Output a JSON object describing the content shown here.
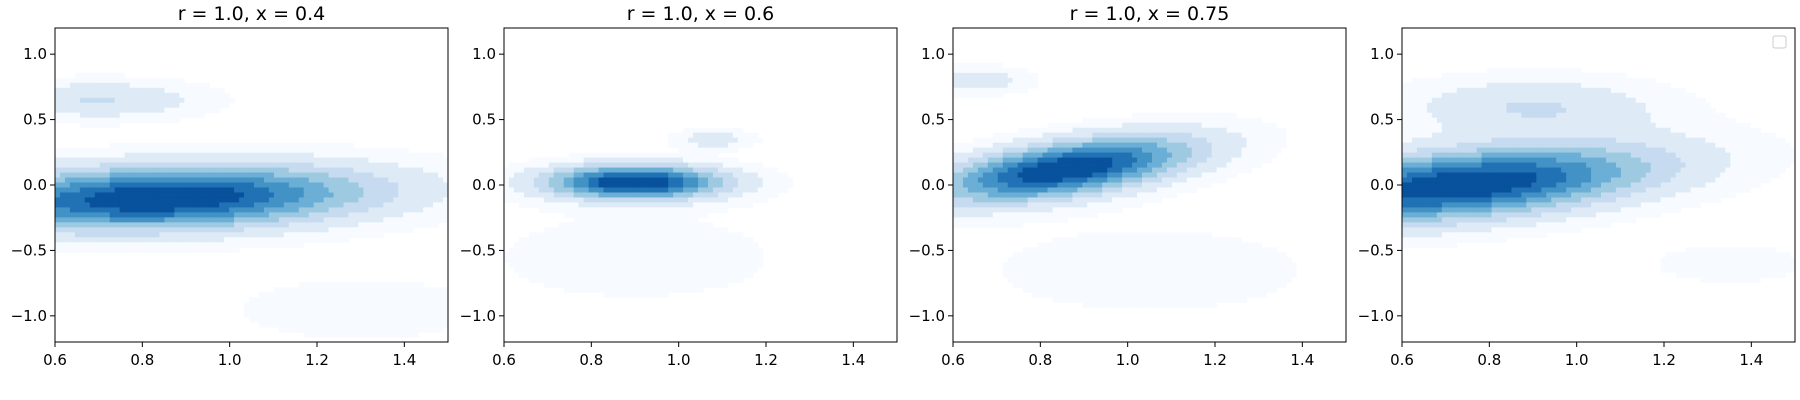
{
  "colors": {
    "levels": [
      "#f7fbff",
      "#deebf7",
      "#c6dbef",
      "#9ecae1",
      "#6baed6",
      "#4292c6",
      "#2171b5",
      "#08519c"
    ]
  },
  "chart_data": [
    {
      "type": "contour",
      "title": "r = 1.0, x = 0.4",
      "xlim": [
        0.6,
        1.5
      ],
      "ylim": [
        -1.2,
        1.2
      ],
      "xticks": [
        "0.6",
        "0.8",
        "1.0",
        "1.2",
        "1.4"
      ],
      "yticks": [
        "−1.0",
        "−0.5",
        "0.0",
        "0.5",
        "1.0"
      ],
      "xtick_values": [
        0.6,
        0.8,
        1.0,
        1.2,
        1.4
      ],
      "ytick_values": [
        -1.0,
        -0.5,
        0.0,
        0.5,
        1.0
      ],
      "density_peaks": [
        {
          "x": 0.85,
          "y": -0.1,
          "sx": 0.32,
          "sy": 0.17,
          "w": 1.0,
          "rho": 0.2
        },
        {
          "x": 0.7,
          "y": 0.65,
          "sx": 0.16,
          "sy": 0.1,
          "w": 0.25,
          "rho": 0.0
        },
        {
          "x": 1.3,
          "y": -0.95,
          "sx": 0.18,
          "sy": 0.15,
          "w": 0.12,
          "rho": 0.0
        }
      ]
    },
    {
      "type": "contour",
      "title": "r = 1.0, x = 0.6",
      "xlim": [
        0.6,
        1.5
      ],
      "ylim": [
        -1.2,
        1.2
      ],
      "xticks": [
        "0.6",
        "0.8",
        "1.0",
        "1.2",
        "1.4"
      ],
      "yticks": [
        "−1.0",
        "−0.5",
        "0.0",
        "0.5",
        "1.0"
      ],
      "xtick_values": [
        0.6,
        0.8,
        1.0,
        1.2,
        1.4
      ],
      "ytick_values": [
        -1.0,
        -0.5,
        0.0,
        0.5,
        1.0
      ],
      "density_peaks": [
        {
          "x": 0.9,
          "y": 0.02,
          "sx": 0.14,
          "sy": 0.09,
          "w": 1.0,
          "rho": 0.0
        },
        {
          "x": 1.08,
          "y": 0.35,
          "sx": 0.06,
          "sy": 0.05,
          "w": 0.2,
          "rho": 0.0
        },
        {
          "x": 0.9,
          "y": -0.55,
          "sx": 0.25,
          "sy": 0.25,
          "w": 0.08,
          "rho": 0.0
        }
      ]
    },
    {
      "type": "contour",
      "title": "r = 1.0, x = 0.75",
      "xlim": [
        0.6,
        1.5
      ],
      "ylim": [
        -1.2,
        1.2
      ],
      "xticks": [
        "0.6",
        "0.8",
        "1.0",
        "1.2",
        "1.4"
      ],
      "yticks": [
        "−1.0",
        "−0.5",
        "0.0",
        "0.5",
        "1.0"
      ],
      "xtick_values": [
        0.6,
        0.8,
        1.0,
        1.2,
        1.4
      ],
      "ytick_values": [
        -1.0,
        -0.5,
        0.0,
        0.5,
        1.0
      ],
      "density_peaks": [
        {
          "x": 0.86,
          "y": 0.12,
          "sx": 0.2,
          "sy": 0.17,
          "w": 1.0,
          "rho": 0.55
        },
        {
          "x": 0.65,
          "y": 0.8,
          "sx": 0.08,
          "sy": 0.07,
          "w": 0.22,
          "rho": 0.0
        },
        {
          "x": 1.05,
          "y": -0.65,
          "sx": 0.25,
          "sy": 0.22,
          "w": 0.1,
          "rho": 0.0
        }
      ]
    },
    {
      "type": "contour",
      "title": "",
      "legend": "top-right",
      "xlim": [
        0.6,
        1.5
      ],
      "ylim": [
        -1.2,
        1.2
      ],
      "xticks": [
        "0.6",
        "0.8",
        "1.0",
        "1.2",
        "1.4"
      ],
      "yticks": [
        "−1.0",
        "−0.5",
        "0.0",
        "0.5",
        "1.0"
      ],
      "xtick_values": [
        0.6,
        0.8,
        1.0,
        1.2,
        1.4
      ],
      "ytick_values": [
        -1.0,
        -0.5,
        0.0,
        0.5,
        1.0
      ],
      "density_peaks": [
        {
          "x": 0.74,
          "y": 0.0,
          "sx": 0.3,
          "sy": 0.2,
          "w": 1.0,
          "rho": 0.45
        },
        {
          "x": 0.9,
          "y": 0.6,
          "sx": 0.2,
          "sy": 0.15,
          "w": 0.25,
          "rho": 0.0
        },
        {
          "x": 1.35,
          "y": -0.6,
          "sx": 0.12,
          "sy": 0.1,
          "w": 0.1,
          "rho": 0.0
        }
      ]
    }
  ]
}
